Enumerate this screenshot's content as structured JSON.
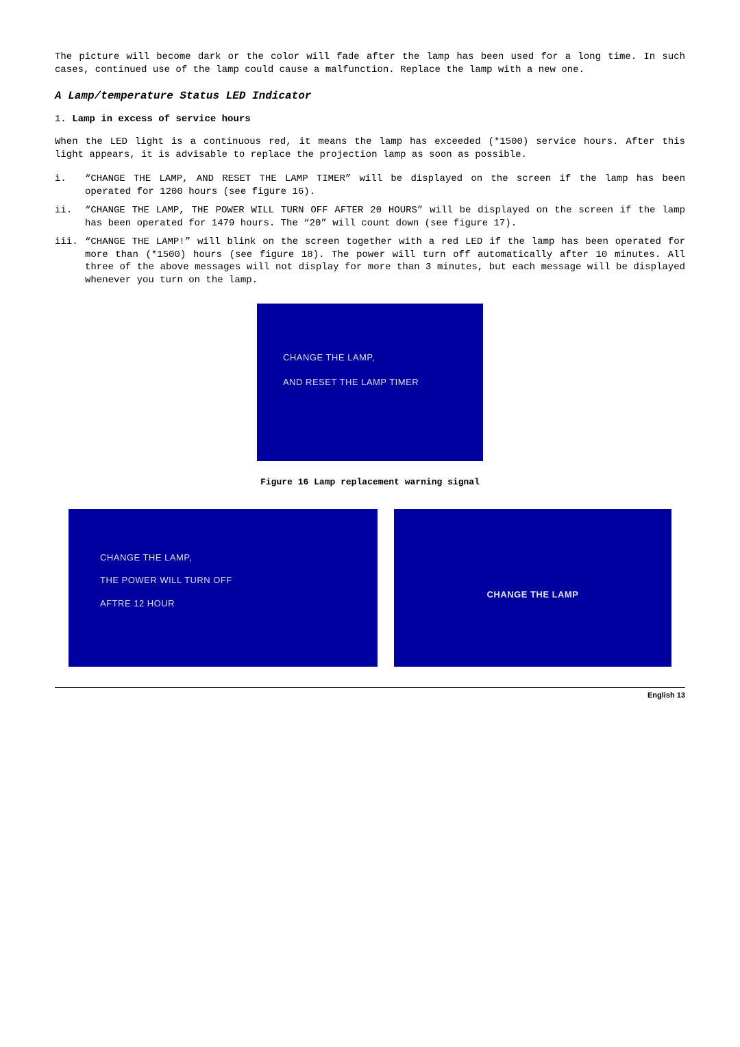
{
  "intro": "The picture will become dark or the color will fade after the lamp has been used for a long time. In such cases, continued use of the lamp could cause a malfunction. Replace the lamp with a new one.",
  "section_heading": "A Lamp/temperature Status LED Indicator",
  "sub_num": "1.",
  "sub_title": "Lamp in excess of service hours",
  "body_para": "When the LED light is a continuous red, it means the lamp has exceeded (*1500) service hours. After this light appears, it is advisable to replace the projection lamp as soon as possible.",
  "items": {
    "i_num": "i.",
    "i_text": "“CHANGE THE LAMP, AND RESET THE LAMP TIMER” will be displayed on the screen if the lamp has been operated for 1200 hours (see figure 16).",
    "ii_num": "ii.",
    "ii_text": "“CHANGE THE LAMP, THE POWER WILL TURN OFF AFTER 20 HOURS” will be displayed on the screen if the lamp has been operated for 1479 hours. The “20” will count down (see figure 17).",
    "iii_num": "iii.",
    "iii_text": "“CHANGE THE LAMP!” will blink on the screen together with a red LED if the lamp has been operated for more than (*1500) hours (see figure 18). The power will turn off automatically after 10 minutes. All three of the above messages will not display for more than 3 minutes, but each message will be displayed whenever you turn on the lamp."
  },
  "fig16": {
    "line1": "CHANGE THE LAMP,",
    "line2": "AND RESET THE LAMP TIMER",
    "caption": "Figure 16 Lamp replacement warning signal",
    "bg_color": "#0000a0",
    "text_color": "#e0e0e0"
  },
  "fig17": {
    "line1": "CHANGE THE LAMP,",
    "line2": "THE POWER WILL TURN OFF",
    "line3": "AFTRE  12  HOUR",
    "bg_color": "#0000a0",
    "text_color": "#e0e0e0"
  },
  "fig18": {
    "text": "CHANGE THE LAMP",
    "bg_color": "#0000a0",
    "text_color": "#e0e0e0"
  },
  "footer": "English 13"
}
